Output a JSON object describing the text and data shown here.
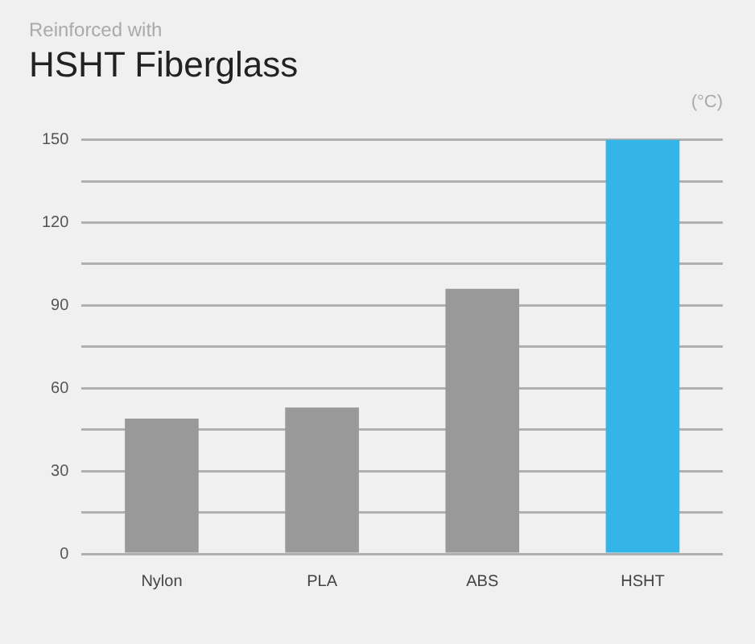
{
  "chart_data": {
    "type": "bar",
    "title": "HSHT Fiberglass",
    "subtitle": "Reinforced with",
    "ylabel": "(°C)",
    "categories": [
      "Nylon",
      "PLA",
      "ABS",
      "HSHT"
    ],
    "values": [
      49,
      53,
      96,
      150
    ],
    "colors": [
      "#999999",
      "#999999",
      "#999999",
      "#33b5e8"
    ],
    "ylim": [
      0,
      150
    ],
    "yticks": [
      0,
      {
        "value": 15,
        "label": null
      },
      30,
      {
        "value": 45,
        "label": null
      },
      60,
      {
        "value": 75,
        "label": null
      },
      90,
      {
        "value": 105,
        "label": null
      },
      120,
      {
        "value": 135,
        "label": null
      },
      150
    ],
    "grid": "y",
    "legend": false
  }
}
